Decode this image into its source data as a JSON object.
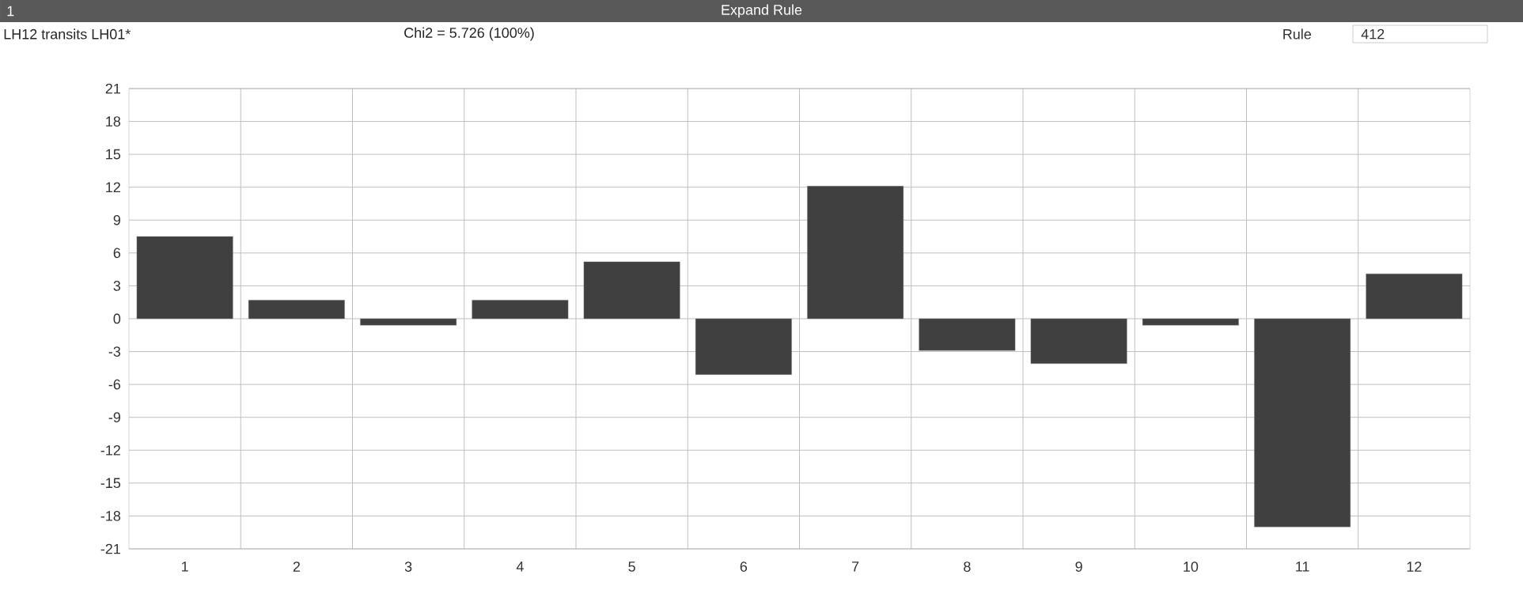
{
  "chart_data": {
    "type": "bar",
    "title": "LH12 transits LH01*",
    "subtitle": "Chi2 = 5.726 (100%)",
    "annotations": [
      "1",
      "Expand Rule",
      "Rule",
      "412"
    ],
    "categories": [
      "1",
      "2",
      "3",
      "4",
      "5",
      "6",
      "7",
      "8",
      "9",
      "10",
      "11",
      "12"
    ],
    "values": [
      7.5,
      1.7,
      -0.6,
      1.7,
      5.2,
      -5.1,
      12.1,
      -2.9,
      -4.1,
      -0.6,
      -19.0,
      4.1
    ],
    "color": "#404040",
    "ylim": [
      -21,
      21
    ],
    "yticks": [
      -21,
      -18,
      -15,
      -12,
      -9,
      -6,
      -3,
      0,
      3,
      6,
      9,
      12,
      15,
      18,
      21
    ],
    "grid": true
  }
}
